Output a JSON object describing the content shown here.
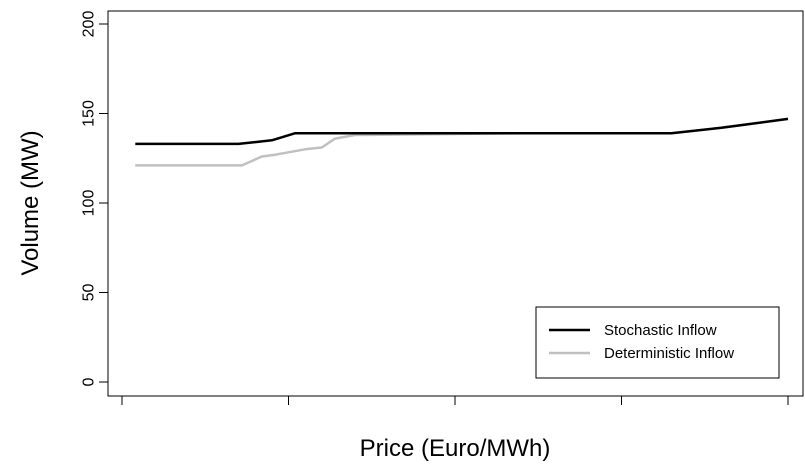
{
  "chart_data": {
    "type": "line",
    "title": "",
    "xlabel": "Price (Euro/MWh)",
    "ylabel": "Volume (MW)",
    "xlim": [
      0,
      20
    ],
    "ylim": [
      0,
      200
    ],
    "x_ticks": [
      0,
      5,
      10,
      15,
      20
    ],
    "y_ticks": [
      0,
      50,
      100,
      150,
      200
    ],
    "y_tick_labels": [
      "0",
      "50",
      "100",
      "150",
      "200"
    ],
    "grid": false,
    "legend": {
      "position": "bottom-right",
      "entries": [
        "Stochastic Inflow",
        "Deterministic Inflow"
      ]
    },
    "series": [
      {
        "name": "Stochastic Inflow",
        "color": "#000000",
        "x": [
          0.4,
          3.0,
          3.5,
          4.0,
          4.5,
          5.2,
          6.0,
          12.0,
          16.5,
          18.0,
          20.0
        ],
        "y": [
          133,
          133,
          133,
          134,
          135,
          139,
          139,
          139,
          139,
          142,
          147
        ]
      },
      {
        "name": "Deterministic Inflow",
        "color": "#c0c0c0",
        "x": [
          0.4,
          3.6,
          4.2,
          4.6,
          5.5,
          6.0,
          6.4,
          7.0,
          12.0,
          16.5,
          18.0,
          20.0
        ],
        "y": [
          121,
          121,
          126,
          127,
          130,
          131,
          136,
          138,
          139,
          139,
          142,
          147
        ]
      }
    ]
  }
}
